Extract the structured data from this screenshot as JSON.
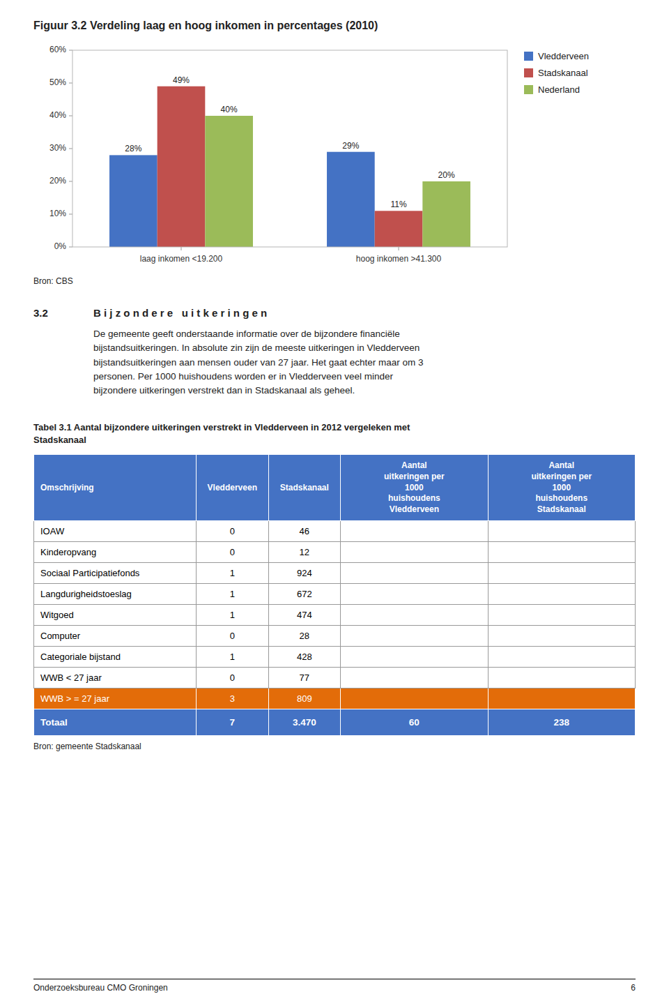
{
  "chart_data": {
    "type": "bar",
    "title": "Figuur 3.2 Verdeling laag en hoog inkomen in percentages (2010)",
    "source": "Bron: CBS",
    "categories": [
      "laag inkomen <19.200",
      "hoog inkomen >41.300"
    ],
    "series": [
      {
        "name": "Vledderveen",
        "color": "#4472C4",
        "values": [
          28,
          29
        ],
        "value_labels": [
          "28%",
          "29%"
        ]
      },
      {
        "name": "Stadskanaal",
        "color": "#C0504D",
        "values": [
          49,
          11
        ],
        "value_labels": [
          "49%",
          "11%"
        ]
      },
      {
        "name": "Nederland",
        "color": "#9BBB59",
        "values": [
          40,
          20
        ],
        "value_labels": [
          "40%",
          "20%"
        ]
      }
    ],
    "ylim": [
      0,
      60
    ],
    "yticks": [
      {
        "value": 0,
        "label": "0%"
      },
      {
        "value": 10,
        "label": "10%"
      },
      {
        "value": 20,
        "label": "20%"
      },
      {
        "value": 30,
        "label": "30%"
      },
      {
        "value": 40,
        "label": "40%"
      },
      {
        "value": 50,
        "label": "50%"
      },
      {
        "value": 60,
        "label": "60%"
      }
    ],
    "grid": false,
    "legend": "right",
    "data_labels": true
  },
  "section": {
    "number": "3.2",
    "title": "B i j z o n d e r e   u i t k e r i n g e n",
    "text": "De gemeente geeft onderstaande informatie over de bijzondere financiële\nbijstandsuitkeringen. In absolute zin zijn de meeste uitkeringen in Vledderveen\nbijstandsuitkeringen aan mensen ouder van 27 jaar. Het gaat echter maar om 3\npersonen. Per 1000 huishoudens worden er in Vledderveen veel minder\nbijzondere uitkeringen verstrekt dan in Stadskanaal als geheel."
  },
  "table": {
    "title": "Tabel 3.1 Aantal bijzondere uitkeringen verstrekt in Vledderveen in 2012 vergeleken met\nStadskanaal",
    "header": [
      "Omschrijving",
      "Vledderveen",
      "Stadskanaal",
      "Aantal\nuitkeringen per\n1000\nhuishoudens\nVledderveen",
      "Aantal\nuitkeringen per\n1000\nhuishoudens\nStadskanaal"
    ],
    "rows": [
      [
        "IOAW",
        "0",
        "46",
        null,
        null
      ],
      [
        "Kinderopvang",
        "0",
        "12",
        null,
        null
      ],
      [
        "Sociaal Participatiefonds",
        "1",
        "924",
        null,
        null
      ],
      [
        "Langdurigheidstoeslag",
        "1",
        "672",
        null,
        null
      ],
      [
        "Witgoed",
        "1",
        "474",
        null,
        null
      ],
      [
        "Computer",
        "0",
        "28",
        null,
        null
      ],
      [
        "Categoriale bijstand",
        "1",
        "428",
        null,
        null
      ],
      [
        "WWB < 27 jaar",
        "0",
        "77",
        null,
        null
      ]
    ],
    "highlight_row": [
      "WWB > = 27 jaar",
      "3",
      "809",
      null,
      null
    ],
    "total_row": [
      "Totaal",
      "7",
      "3.470",
      "60",
      "238"
    ],
    "header_color": "#4472C4",
    "header_text_color": "#FFFFFF",
    "highlight_color": "#E36C09",
    "highlight_text_color": "#FFFFFF",
    "total_color": "#4472C4",
    "total_text_color": "#FFFFFF",
    "source": "Bron: gemeente Stadskanaal"
  },
  "footer": {
    "left": "Onderzoeksbureau CMO Groningen",
    "right": "6"
  }
}
